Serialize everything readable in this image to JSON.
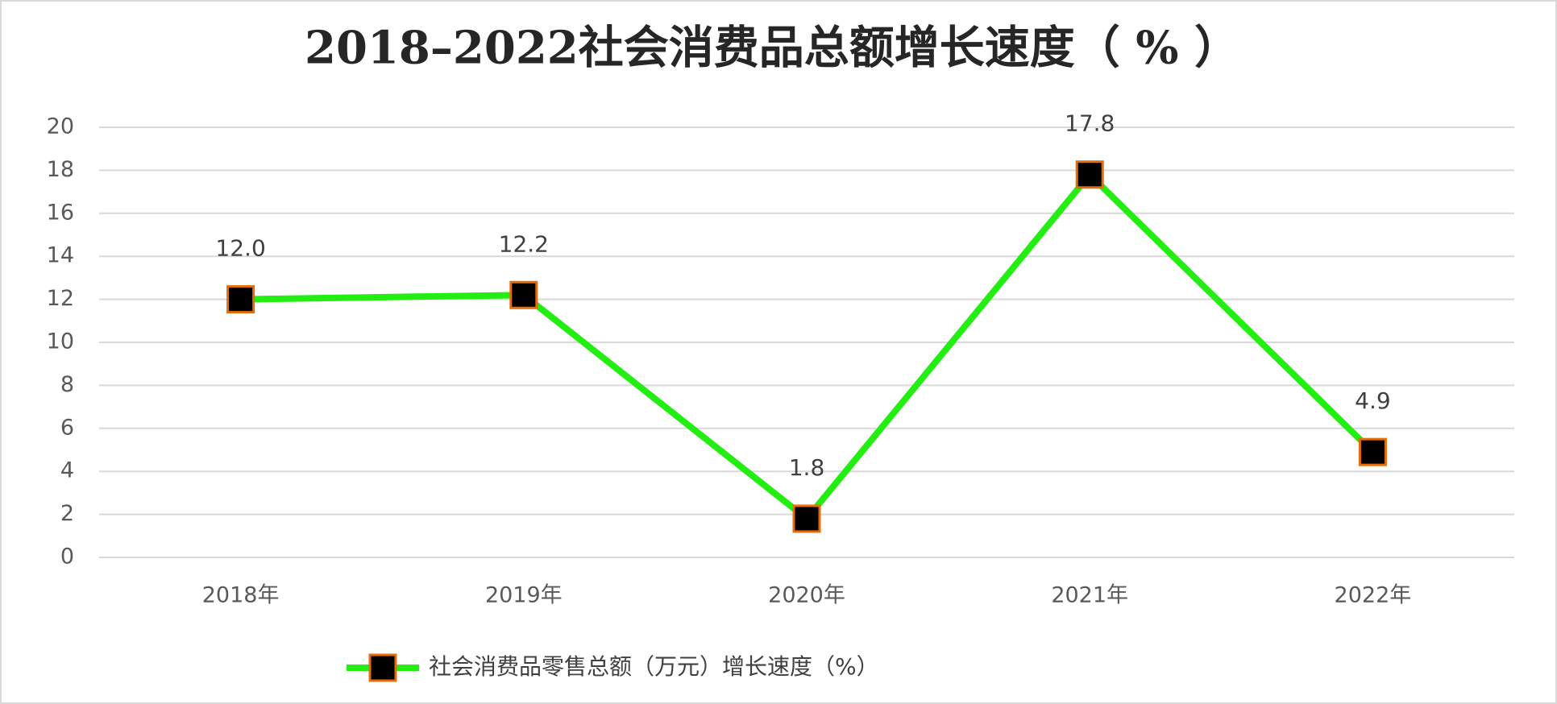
{
  "chart_data": {
    "type": "line",
    "title": "2018–2022社会消费品总额增长速度（ % ）",
    "categories": [
      "2018年",
      "2019年",
      "2020年",
      "2021年",
      "2022年"
    ],
    "series": [
      {
        "name": "社会消费品零售总额（万元）增长速度（%）",
        "color": "#22ee11",
        "marker_fill": "#000000",
        "marker_edge": "#e46c0a",
        "values": [
          12.0,
          12.2,
          1.8,
          17.8,
          4.9
        ],
        "value_labels": [
          "12.0",
          "12.2",
          "1.8",
          "17.8",
          "4.9"
        ]
      }
    ],
    "ylim": [
      0,
      20
    ],
    "yticks": [
      0,
      2,
      4,
      6,
      8,
      10,
      12,
      14,
      16,
      18,
      20
    ],
    "grid": true,
    "legend": "bottom"
  }
}
